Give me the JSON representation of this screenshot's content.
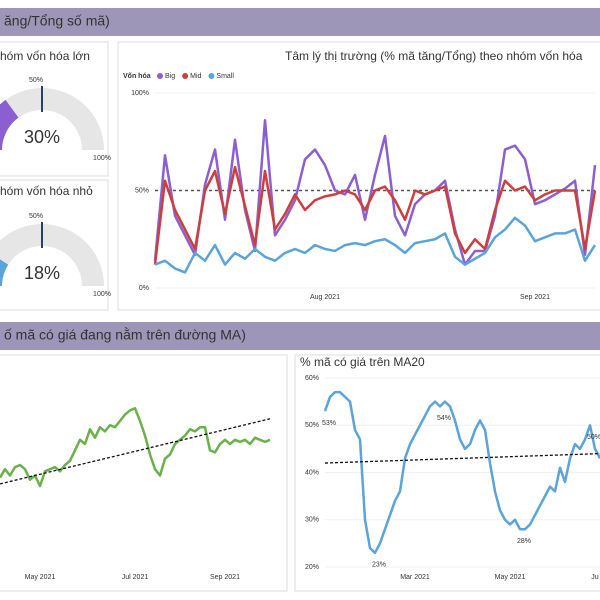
{
  "banners": [
    "ăng/Tổng số mã)",
    "ố mã có giá đang nằm trên đường MA)"
  ],
  "gauges": [
    {
      "title": "hóm vốn hóa lớn",
      "value": 30,
      "value_label": "30%",
      "color": "#8c5fd0",
      "target": {
        "value": 50,
        "label": "50%"
      },
      "max": {
        "value": 100,
        "label": "100%"
      }
    },
    {
      "title": "hóm vốn hóa nhỏ",
      "value": 18,
      "value_label": "18%",
      "color": "#5ba3d9",
      "target": {
        "value": 50,
        "label": "50%"
      },
      "max": {
        "value": 100,
        "label": "100%"
      }
    }
  ],
  "chart_data": [
    {
      "type": "line",
      "title": "Tâm lý thị trường (% mã tăng/Tổng) theo nhóm vốn hóa",
      "legend_title": "Vốn hóa",
      "categories": [
        null,
        null,
        null,
        null,
        null,
        null,
        null,
        null,
        null,
        null,
        null,
        null,
        null,
        null,
        null,
        null,
        null,
        "Aug 2021",
        null,
        null,
        null,
        null,
        null,
        null,
        null,
        null,
        null,
        null,
        null,
        null,
        null,
        null,
        null,
        null,
        null,
        null,
        null,
        null,
        "Sep 2021",
        null,
        null,
        null,
        null,
        null,
        null
      ],
      "series": [
        {
          "name": "Big",
          "color": "#8c5fd0",
          "values": [
            14,
            68,
            37,
            27,
            17,
            53,
            71,
            35,
            76,
            40,
            19,
            86,
            27,
            35,
            45,
            66,
            71,
            63,
            50,
            48,
            58,
            35,
            58,
            78,
            37,
            27,
            43,
            48,
            50,
            55,
            30,
            12,
            19,
            19,
            37,
            71,
            73,
            66,
            43,
            45,
            48,
            51,
            55,
            17,
            63
          ]
        },
        {
          "name": "Mid",
          "color": "#cc3f3f",
          "values": [
            12,
            55,
            40,
            30,
            20,
            50,
            60,
            38,
            62,
            42,
            22,
            60,
            30,
            38,
            48,
            40,
            45,
            47,
            48,
            50,
            48,
            40,
            50,
            52,
            45,
            35,
            50,
            48,
            50,
            52,
            28,
            18,
            25,
            20,
            40,
            55,
            50,
            52,
            45,
            48,
            50,
            50,
            50,
            20,
            50
          ]
        },
        {
          "name": "Small",
          "color": "#5ba3d9",
          "values": [
            12,
            14,
            10,
            8,
            18,
            14,
            22,
            12,
            18,
            15,
            20,
            16,
            14,
            18,
            20,
            18,
            22,
            20,
            19,
            22,
            23,
            22,
            24,
            25,
            22,
            18,
            23,
            24,
            25,
            28,
            16,
            12,
            15,
            18,
            26,
            30,
            36,
            32,
            24,
            26,
            28,
            28,
            30,
            14,
            22
          ]
        }
      ],
      "ylim": [
        0,
        100
      ],
      "yticks": [
        {
          "value": 0,
          "label": "0%"
        },
        {
          "value": 50,
          "label": "50%"
        },
        {
          "value": 100,
          "label": "100%"
        }
      ],
      "reference_line": 50
    },
    {
      "type": "line",
      "categories": [
        null,
        null,
        null,
        null,
        null,
        null,
        null,
        null,
        "May 2021",
        null,
        null,
        null,
        null,
        null,
        null,
        null,
        null,
        null,
        null,
        null,
        null,
        null,
        null,
        null,
        null,
        null,
        null,
        "Jul 2021",
        null,
        null,
        null,
        null,
        null,
        null,
        null,
        null,
        null,
        null,
        null,
        null,
        null,
        null,
        null,
        null,
        null,
        "Sep 2021",
        null,
        null,
        null,
        null,
        null,
        null,
        null,
        null,
        null
      ],
      "color": "#6ab04c",
      "values": [
        44,
        48,
        45,
        49,
        50,
        48,
        43,
        45,
        40,
        47,
        48,
        49,
        47,
        50,
        52,
        57,
        62,
        60,
        67,
        63,
        68,
        66,
        69,
        68,
        71,
        74,
        76,
        77,
        71,
        64,
        55,
        48,
        45,
        53,
        55,
        60,
        62,
        64,
        67,
        66,
        68,
        68,
        57,
        56,
        60,
        62,
        60,
        62,
        61,
        62,
        60,
        63,
        62,
        61,
        62
      ],
      "ylim": [
        0,
        100
      ],
      "trend": [
        41,
        72
      ]
    },
    {
      "type": "line",
      "title": "% mã có giá trên MA20",
      "categories": [
        null,
        null,
        null,
        null,
        null,
        null,
        null,
        null,
        null,
        null,
        null,
        null,
        null,
        null,
        null,
        null,
        null,
        null,
        "Mar 2021",
        null,
        null,
        null,
        null,
        null,
        null,
        null,
        null,
        null,
        null,
        null,
        null,
        null,
        null,
        null,
        null,
        null,
        null,
        "May 2021",
        null,
        null,
        null,
        null,
        null,
        null,
        null,
        null,
        null,
        null,
        null,
        null,
        null,
        null,
        null,
        null,
        "Ju",
        null
      ],
      "color": "#5ba3d9",
      "values": [
        53,
        56,
        57,
        57,
        56,
        55,
        49,
        47,
        30,
        24,
        23,
        25,
        28,
        31,
        34,
        36,
        43,
        46,
        48,
        50,
        52,
        54,
        55,
        54,
        55,
        54,
        51,
        47,
        45,
        46,
        49,
        51,
        49,
        42,
        36,
        32,
        30,
        29,
        30,
        28,
        28,
        29,
        31,
        33,
        35,
        37,
        36,
        41,
        38,
        43,
        46,
        45,
        47,
        50,
        45,
        43
      ],
      "value_labels": [
        "53%",
        null,
        null,
        null,
        null,
        null,
        null,
        null,
        null,
        null,
        "23%",
        null,
        null,
        null,
        null,
        null,
        null,
        null,
        null,
        null,
        null,
        null,
        null,
        "54%",
        null,
        null,
        null,
        null,
        null,
        null,
        null,
        null,
        null,
        null,
        null,
        null,
        null,
        null,
        null,
        "28%",
        null,
        null,
        null,
        null,
        null,
        null,
        null,
        null,
        null,
        null,
        null,
        null,
        null,
        "50%",
        null,
        null
      ],
      "ylim": [
        20,
        60
      ],
      "yticks": [
        {
          "value": 20,
          "label": "20%"
        },
        {
          "value": 30,
          "label": "30%"
        },
        {
          "value": 40,
          "label": "40%"
        },
        {
          "value": 50,
          "label": "50%"
        },
        {
          "value": 60,
          "label": "60%"
        }
      ],
      "trend": [
        42,
        44
      ]
    }
  ]
}
